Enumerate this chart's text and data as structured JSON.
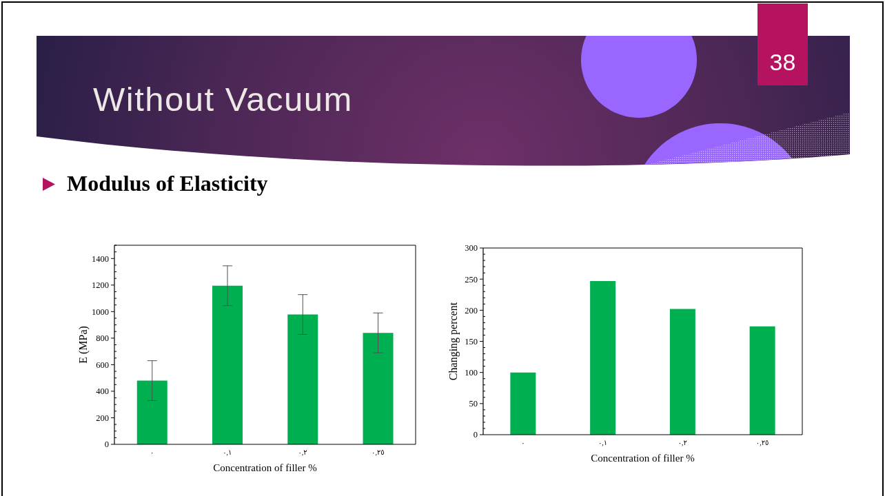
{
  "chart_data": [
    {
      "type": "bar",
      "title": "Without Vacuum",
      "subtitle": "Modulus of Elasticity",
      "annotations": [
        "38"
      ],
      "categories": [
        "٠",
        "٠,١",
        "٠,٢",
        "٠,٢٥"
      ],
      "values": [
        480,
        1195,
        978,
        840
      ],
      "errors": [
        150,
        150,
        150,
        150
      ],
      "color": "#00b050",
      "xlabel": "Concentration of filler %",
      "ylabel": "E (MPa)",
      "ylim": [
        0,
        1500
      ],
      "yticks": [
        0,
        {
          "value": 50,
          "label": null
        },
        {
          "value": 100,
          "label": null
        },
        {
          "value": 150,
          "label": null
        },
        200,
        {
          "value": 250,
          "label": null
        },
        {
          "value": 300,
          "label": null
        },
        {
          "value": 350,
          "label": null
        },
        400,
        {
          "value": 450,
          "label": null
        },
        {
          "value": 500,
          "label": null
        },
        {
          "value": 550,
          "label": null
        },
        600,
        {
          "value": 650,
          "label": null
        },
        {
          "value": 700,
          "label": null
        },
        {
          "value": 750,
          "label": null
        },
        800,
        {
          "value": 850,
          "label": null
        },
        {
          "value": 900,
          "label": null
        },
        {
          "value": 950,
          "label": null
        },
        1000,
        {
          "value": 1050,
          "label": null
        },
        {
          "value": 1100,
          "label": null
        },
        {
          "value": 1150,
          "label": null
        },
        1200,
        {
          "value": 1250,
          "label": null
        },
        {
          "value": 1300,
          "label": null
        },
        {
          "value": 1350,
          "label": null
        },
        1400,
        {
          "value": 1450,
          "label": null
        },
        {
          "value": 1500,
          "label": null
        }
      ]
    },
    {
      "type": "bar",
      "categories": [
        "٠",
        "٠,١",
        "٠,٢",
        "٠,٢٥"
      ],
      "values": [
        100,
        247,
        202,
        174
      ],
      "color": "#00b050",
      "xlabel": "Concentration of filler %",
      "ylabel": "Changing percent",
      "ylim": [
        0,
        300
      ],
      "yticks": [
        0,
        {
          "value": 10,
          "label": null
        },
        {
          "value": 20,
          "label": null
        },
        {
          "value": 30,
          "label": null
        },
        {
          "value": 40,
          "label": null
        },
        50,
        {
          "value": 60,
          "label": null
        },
        {
          "value": 70,
          "label": null
        },
        {
          "value": 80,
          "label": null
        },
        {
          "value": 90,
          "label": null
        },
        100,
        {
          "value": 110,
          "label": null
        },
        {
          "value": 120,
          "label": null
        },
        {
          "value": 130,
          "label": null
        },
        {
          "value": 140,
          "label": null
        },
        150,
        {
          "value": 160,
          "label": null
        },
        {
          "value": 170,
          "label": null
        },
        {
          "value": 180,
          "label": null
        },
        {
          "value": 190,
          "label": null
        },
        200,
        {
          "value": 210,
          "label": null
        },
        {
          "value": 220,
          "label": null
        },
        {
          "value": 230,
          "label": null
        },
        {
          "value": 240,
          "label": null
        },
        250,
        {
          "value": 260,
          "label": null
        },
        {
          "value": 270,
          "label": null
        },
        {
          "value": 280,
          "label": null
        },
        {
          "value": 290,
          "label": null
        },
        300
      ]
    }
  ]
}
